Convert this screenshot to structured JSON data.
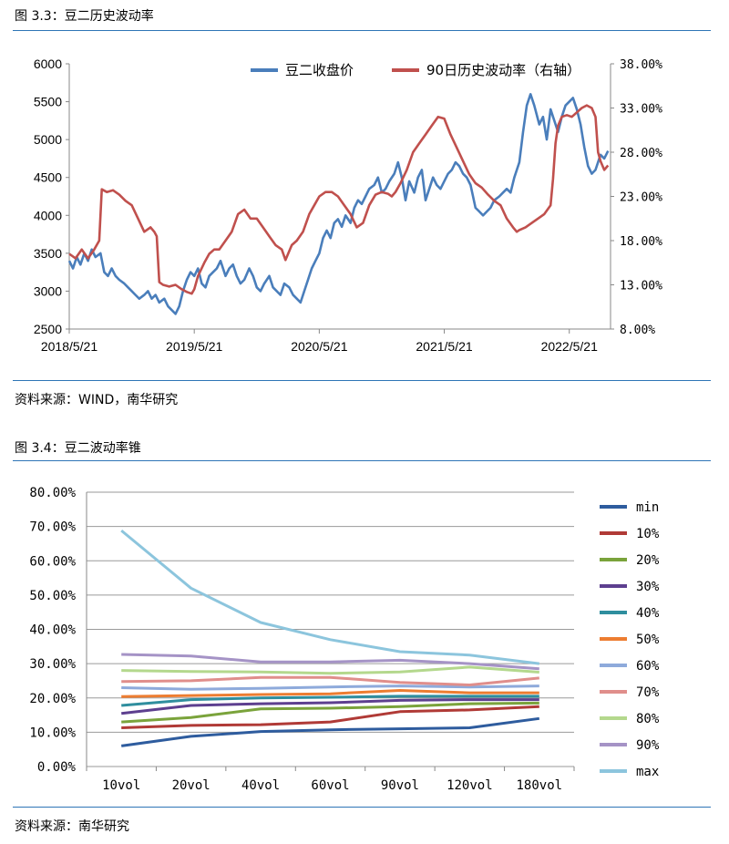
{
  "fig1": {
    "caption": "图 3.3：豆二历史波动率",
    "source": "资料来源：WIND，南华研究"
  },
  "fig2": {
    "caption": "图 3.4：豆二波动率锥",
    "source": "资料来源：南华研究"
  },
  "chart_data": [
    {
      "type": "line",
      "title": "",
      "x_tick_labels": [
        "2018/5/21",
        "2019/5/21",
        "2020/5/21",
        "2021/5/21",
        "2022/5/21"
      ],
      "x_range": [
        0,
        4.33
      ],
      "ylim_left": [
        2500,
        6000
      ],
      "yticks_left": [
        "6000",
        "5500",
        "5000",
        "4500",
        "4000",
        "3500",
        "3000",
        "2500"
      ],
      "ylim_right": [
        0.08,
        0.38
      ],
      "yticks_right": [
        "38.00%",
        "33.00%",
        "28.00%",
        "23.00%",
        "18.00%",
        "13.00%",
        "8.00%"
      ],
      "legend": [
        "豆二收盘价",
        "90日历史波动率（右轴）"
      ],
      "series": [
        {
          "name": "豆二收盘价",
          "axis": "left",
          "color": "#4a7ebb",
          "x": [
            0.0,
            0.03,
            0.06,
            0.09,
            0.12,
            0.15,
            0.18,
            0.21,
            0.25,
            0.28,
            0.31,
            0.34,
            0.37,
            0.4,
            0.44,
            0.47,
            0.5,
            0.53,
            0.56,
            0.6,
            0.63,
            0.66,
            0.69,
            0.72,
            0.76,
            0.79,
            0.82,
            0.85,
            0.88,
            0.91,
            0.94,
            0.97,
            1.0,
            1.03,
            1.06,
            1.09,
            1.12,
            1.15,
            1.18,
            1.21,
            1.25,
            1.28,
            1.31,
            1.34,
            1.37,
            1.4,
            1.44,
            1.47,
            1.5,
            1.53,
            1.56,
            1.6,
            1.63,
            1.66,
            1.69,
            1.72,
            1.76,
            1.79,
            1.82,
            1.85,
            1.88,
            1.91,
            1.94,
            1.97,
            2.0,
            2.03,
            2.06,
            2.09,
            2.12,
            2.15,
            2.18,
            2.21,
            2.25,
            2.28,
            2.31,
            2.34,
            2.37,
            2.4,
            2.44,
            2.47,
            2.5,
            2.53,
            2.56,
            2.6,
            2.63,
            2.66,
            2.69,
            2.72,
            2.76,
            2.79,
            2.82,
            2.85,
            2.88,
            2.91,
            2.94,
            2.97,
            3.0,
            3.03,
            3.06,
            3.09,
            3.12,
            3.15,
            3.18,
            3.21,
            3.25,
            3.28,
            3.31,
            3.34,
            3.37,
            3.4,
            3.44,
            3.47,
            3.5,
            3.53,
            3.56,
            3.6,
            3.63,
            3.66,
            3.69,
            3.72,
            3.76,
            3.79,
            3.82,
            3.85,
            3.88,
            3.91,
            3.94,
            3.97,
            4.0,
            4.03,
            4.06,
            4.09,
            4.12,
            4.15,
            4.18,
            4.21,
            4.25,
            4.28,
            4.31
          ],
          "y": [
            3400,
            3300,
            3450,
            3350,
            3500,
            3400,
            3550,
            3450,
            3500,
            3250,
            3200,
            3300,
            3200,
            3150,
            3100,
            3050,
            3000,
            2950,
            2900,
            2950,
            3000,
            2900,
            2950,
            2850,
            2900,
            2800,
            2750,
            2700,
            2800,
            3000,
            3150,
            3250,
            3200,
            3300,
            3100,
            3050,
            3200,
            3250,
            3300,
            3400,
            3200,
            3300,
            3350,
            3200,
            3100,
            3150,
            3300,
            3200,
            3050,
            3000,
            3100,
            3200,
            3050,
            3000,
            2950,
            3100,
            3050,
            2950,
            2900,
            2850,
            3000,
            3150,
            3300,
            3400,
            3500,
            3700,
            3800,
            3700,
            3900,
            3950,
            3850,
            4000,
            3900,
            4100,
            4200,
            4150,
            4250,
            4350,
            4400,
            4500,
            4300,
            4350,
            4450,
            4550,
            4700,
            4500,
            4200,
            4450,
            4300,
            4500,
            4600,
            4200,
            4350,
            4500,
            4400,
            4350,
            4450,
            4550,
            4600,
            4700,
            4650,
            4550,
            4500,
            4400,
            4100,
            4050,
            4000,
            4050,
            4100,
            4200,
            4250,
            4300,
            4350,
            4300,
            4500,
            4700,
            5100,
            5450,
            5600,
            5450,
            5200,
            5300,
            5000,
            5400,
            5250,
            5100,
            5300,
            5450,
            5500,
            5550,
            5400,
            5200,
            4900,
            4650,
            4550,
            4600,
            4800,
            4750,
            4850
          ]
        },
        {
          "name": "90日历史波动率（右轴）",
          "axis": "right",
          "color": "#c0504d",
          "x": [
            0.0,
            0.05,
            0.1,
            0.15,
            0.2,
            0.24,
            0.26,
            0.3,
            0.35,
            0.4,
            0.45,
            0.5,
            0.55,
            0.6,
            0.65,
            0.68,
            0.7,
            0.72,
            0.75,
            0.8,
            0.85,
            0.9,
            0.94,
            0.98,
            1.0,
            1.03,
            1.08,
            1.12,
            1.16,
            1.2,
            1.25,
            1.3,
            1.35,
            1.4,
            1.45,
            1.5,
            1.55,
            1.6,
            1.65,
            1.7,
            1.73,
            1.78,
            1.82,
            1.87,
            1.92,
            1.96,
            2.0,
            2.05,
            2.1,
            2.15,
            2.2,
            2.25,
            2.3,
            2.35,
            2.4,
            2.45,
            2.5,
            2.55,
            2.58,
            2.61,
            2.65,
            2.7,
            2.75,
            2.8,
            2.85,
            2.9,
            2.95,
            3.0,
            3.05,
            3.1,
            3.15,
            3.2,
            3.25,
            3.3,
            3.35,
            3.4,
            3.45,
            3.5,
            3.55,
            3.58,
            3.6,
            3.65,
            3.7,
            3.75,
            3.8,
            3.85,
            3.87,
            3.89,
            3.91,
            3.94,
            3.98,
            4.02,
            4.06,
            4.1,
            4.14,
            4.18,
            4.21,
            4.23,
            4.25,
            4.28,
            4.31
          ],
          "y": [
            0.165,
            0.16,
            0.17,
            0.16,
            0.17,
            0.18,
            0.238,
            0.235,
            0.237,
            0.232,
            0.225,
            0.22,
            0.205,
            0.19,
            0.195,
            0.19,
            0.185,
            0.133,
            0.13,
            0.128,
            0.13,
            0.125,
            0.122,
            0.12,
            0.125,
            0.14,
            0.155,
            0.165,
            0.17,
            0.17,
            0.18,
            0.19,
            0.21,
            0.215,
            0.205,
            0.205,
            0.195,
            0.185,
            0.175,
            0.17,
            0.158,
            0.175,
            0.18,
            0.19,
            0.21,
            0.22,
            0.23,
            0.235,
            0.235,
            0.23,
            0.22,
            0.21,
            0.195,
            0.2,
            0.22,
            0.232,
            0.235,
            0.233,
            0.23,
            0.235,
            0.245,
            0.26,
            0.28,
            0.29,
            0.3,
            0.31,
            0.32,
            0.318,
            0.3,
            0.285,
            0.27,
            0.255,
            0.245,
            0.24,
            0.232,
            0.225,
            0.22,
            0.205,
            0.195,
            0.19,
            0.192,
            0.195,
            0.2,
            0.205,
            0.21,
            0.22,
            0.25,
            0.29,
            0.31,
            0.32,
            0.322,
            0.32,
            0.325,
            0.33,
            0.333,
            0.33,
            0.32,
            0.28,
            0.27,
            0.26,
            0.265
          ]
        }
      ]
    },
    {
      "type": "line",
      "title": "",
      "categories": [
        "10vol",
        "20vol",
        "40vol",
        "60vol",
        "90vol",
        "120vol",
        "180vol"
      ],
      "ylim": [
        0,
        0.8
      ],
      "ytick_labels": [
        "80.00%",
        "70.00%",
        "60.00%",
        "50.00%",
        "40.00%",
        "30.00%",
        "20.00%",
        "10.00%",
        "0.00%"
      ],
      "series": [
        {
          "name": "min",
          "color": "#2e5c9e",
          "values": [
            0.06,
            0.088,
            0.102,
            0.107,
            0.11,
            0.113,
            0.14
          ]
        },
        {
          "name": "10%",
          "color": "#b03a36",
          "values": [
            0.113,
            0.12,
            0.122,
            0.13,
            0.16,
            0.165,
            0.175
          ]
        },
        {
          "name": "20%",
          "color": "#7aa33b",
          "values": [
            0.13,
            0.143,
            0.168,
            0.17,
            0.175,
            0.183,
            0.185
          ]
        },
        {
          "name": "30%",
          "color": "#5d3f8f",
          "values": [
            0.155,
            0.178,
            0.183,
            0.186,
            0.193,
            0.195,
            0.195
          ]
        },
        {
          "name": "40%",
          "color": "#2f8e9e",
          "values": [
            0.178,
            0.195,
            0.2,
            0.202,
            0.205,
            0.205,
            0.205
          ]
        },
        {
          "name": "50%",
          "color": "#ed7d31",
          "values": [
            0.204,
            0.207,
            0.21,
            0.212,
            0.222,
            0.215,
            0.215
          ]
        },
        {
          "name": "60%",
          "color": "#8eaadb",
          "values": [
            0.23,
            0.225,
            0.228,
            0.232,
            0.235,
            0.232,
            0.235
          ]
        },
        {
          "name": "70%",
          "color": "#e08e8b",
          "values": [
            0.248,
            0.25,
            0.26,
            0.26,
            0.245,
            0.238,
            0.258
          ]
        },
        {
          "name": "80%",
          "color": "#b4d88d",
          "values": [
            0.28,
            0.277,
            0.276,
            0.272,
            0.276,
            0.29,
            0.275
          ]
        },
        {
          "name": "90%",
          "color": "#a593c6",
          "values": [
            0.327,
            0.322,
            0.305,
            0.305,
            0.31,
            0.3,
            0.285
          ]
        },
        {
          "name": "max",
          "color": "#8cc5dd",
          "values": [
            0.688,
            0.52,
            0.42,
            0.37,
            0.335,
            0.325,
            0.3
          ]
        }
      ]
    }
  ]
}
